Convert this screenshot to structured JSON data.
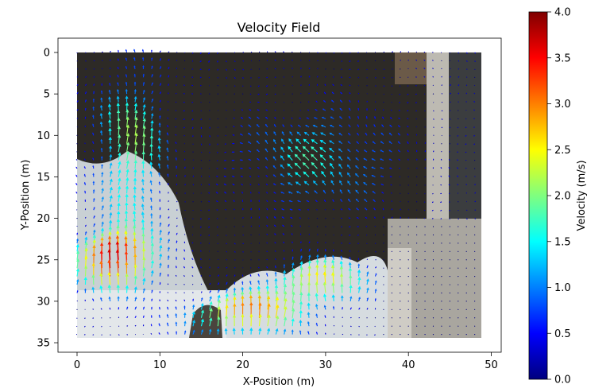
{
  "chart_data": {
    "type": "quiver",
    "title": "Velocity Field",
    "xlabel": "X-Position (m)",
    "ylabel": "Y-Position (m)",
    "xlim": [
      -2,
      51
    ],
    "ylim": [
      36,
      -2
    ],
    "y_inverted": true,
    "xticks": [
      0,
      10,
      20,
      30,
      40,
      50
    ],
    "yticks": [
      0,
      5,
      10,
      15,
      20,
      25,
      30,
      35
    ],
    "grid": false,
    "background_image": "aerial photo of river below a concrete dam with whitewater, extent x 0–48.8 m, y 0–34.4 m",
    "colorbar": {
      "label": "Velocity (m/s)",
      "min": 0.0,
      "max": 4.0,
      "ticks": [
        "0.0",
        "0.5",
        "1.0",
        "1.5",
        "2.0",
        "2.5",
        "3.0",
        "3.5",
        "4.0"
      ],
      "colormap": "jet",
      "colors": [
        "#00007f",
        "#0000ff",
        "#007fff",
        "#00ffff",
        "#7fff7f",
        "#ffff00",
        "#ff7f00",
        "#ff0000",
        "#7f0000"
      ]
    },
    "field": {
      "grid_spacing_m": 1.0,
      "x_range": [
        0,
        48
      ],
      "y_range": [
        0,
        34
      ],
      "regions": [
        {
          "name": "left whitewater jets",
          "x_range": [
            0,
            9
          ],
          "y_range": [
            22,
            29
          ],
          "direction": "upstream (-y)",
          "speed_m_s": [
            3.2,
            3.8
          ]
        },
        {
          "name": "left plume",
          "x_range": [
            2,
            12
          ],
          "y_range": [
            0,
            22
          ],
          "direction": "upstream (-y)",
          "speed_m_s": [
            1.5,
            2.8
          ]
        },
        {
          "name": "diagonal jet",
          "x_range": [
            20,
            40
          ],
          "y_range": [
            5,
            22
          ],
          "direction": "toward upper-left",
          "speed_m_s": [
            1.2,
            1.8
          ]
        },
        {
          "name": "central pool",
          "x_range": [
            12,
            22
          ],
          "y_range": [
            5,
            28
          ],
          "direction": "mixed",
          "speed_m_s": [
            0.2,
            0.6
          ]
        },
        {
          "name": "right whitewater",
          "x_range": [
            23,
            35
          ],
          "y_range": [
            25,
            31
          ],
          "direction": "upstream (-y)",
          "speed_m_s": [
            1.8,
            3.4
          ]
        },
        {
          "name": "bottom channel",
          "x_range": [
            13,
            27
          ],
          "y_range": [
            30,
            34
          ],
          "direction": "upstream (-y)",
          "speed_m_s": [
            3.0,
            3.6
          ]
        }
      ]
    }
  }
}
